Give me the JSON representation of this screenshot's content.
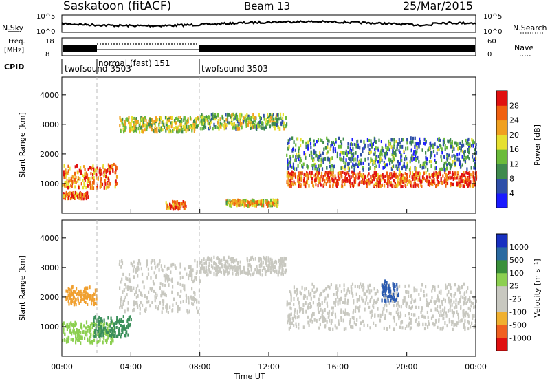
{
  "header": {
    "station": "Saskatoon (fitACF)",
    "beam": "Beam 13",
    "date": "25/Mar/2015"
  },
  "status_panels": {
    "nsky_label": "N.Sky",
    "nsky_ticks": [
      "10^5",
      "10^0"
    ],
    "nsky_right_ticks": [
      "10^5",
      "10^0"
    ],
    "nsearch_label": "N.Search",
    "freq_label_1": "Freq.",
    "freq_label_2": "[MHz]",
    "freq_ticks": [
      "18",
      "8"
    ],
    "nave_ticks": [
      "60",
      "0"
    ],
    "nave_label": "Nave",
    "cpid_label": "CPID"
  },
  "cpid_segments": [
    {
      "label": "twofsound 3503",
      "start_hour": 0.0
    },
    {
      "label": "normal (fast) 151",
      "start_hour": 2.0
    },
    {
      "label": "twofsound 3503",
      "start_hour": 8.0
    }
  ],
  "chart_data": [
    {
      "type": "heatmap",
      "title": "Power",
      "xlabel": "",
      "ylabel": "Slant Range [km]",
      "xlim_hours": [
        0,
        24
      ],
      "ylim": [
        0,
        4600
      ],
      "yticks": [
        1000,
        2000,
        3000,
        4000
      ],
      "colorbar_label": "Power [dB]",
      "colorbar_ticks": [
        "4",
        "8",
        "12",
        "16",
        "20",
        "24",
        "28"
      ],
      "colorbar_colors": [
        "#1a1aff",
        "#2e4fa8",
        "#3f8a4e",
        "#6bbb3a",
        "#e6e030",
        "#f0a020",
        "#f06010",
        "#e01010"
      ],
      "scatter_bands": [
        {
          "start_hour": 0.0,
          "end_hour": 3.2,
          "range_low": 900,
          "range_high": 1700,
          "level": 0.75
        },
        {
          "start_hour": 0.0,
          "end_hour": 1.5,
          "range_low": 550,
          "range_high": 750,
          "level": 0.8
        },
        {
          "start_hour": 3.3,
          "end_hour": 8.0,
          "range_low": 2800,
          "range_high": 3300,
          "level": 0.5
        },
        {
          "start_hour": 8.0,
          "end_hour": 13.0,
          "range_low": 2900,
          "range_high": 3400,
          "level": 0.45
        },
        {
          "start_hour": 13.0,
          "end_hour": 24.0,
          "range_low": 950,
          "range_high": 1450,
          "level": 0.85
        },
        {
          "start_hour": 13.0,
          "end_hour": 24.0,
          "range_low": 1500,
          "range_high": 2600,
          "level": 0.3
        },
        {
          "start_hour": 6.0,
          "end_hour": 7.2,
          "range_low": 200,
          "range_high": 450,
          "level": 0.8
        },
        {
          "start_hour": 9.5,
          "end_hour": 12.5,
          "range_low": 300,
          "range_high": 500,
          "level": 0.6
        }
      ]
    },
    {
      "type": "heatmap",
      "title": "Velocity",
      "xlabel": "Time UT",
      "ylabel": "Slant Range [km]",
      "xlim_hours": [
        0,
        24
      ],
      "ylim": [
        0,
        4600
      ],
      "yticks": [
        1000,
        2000,
        3000,
        4000
      ],
      "xticks": [
        "00:00",
        "04:00",
        "08:00",
        "12:00",
        "16:00",
        "20:00",
        "00:00"
      ],
      "colorbar_label": "Velocity [m s⁻¹]",
      "colorbar_ticks": [
        "1000",
        "500",
        "100",
        "25",
        "-25",
        "-100",
        "-500",
        "-1000"
      ],
      "colorbar_colors": [
        "#1830c0",
        "#2a6aa0",
        "#3a8f3a",
        "#8ccf50",
        "#c8c8c0",
        "#c8c8c0",
        "#f0b030",
        "#f06020",
        "#e01010"
      ],
      "scatter_bands": [
        {
          "start_hour": 0.0,
          "end_hour": 3.0,
          "range_low": 500,
          "range_high": 1200,
          "class": "green"
        },
        {
          "start_hour": 1.8,
          "end_hour": 4.0,
          "range_low": 700,
          "range_high": 1400,
          "class": "darkgreen"
        },
        {
          "start_hour": 3.3,
          "end_hour": 8.0,
          "range_low": 1500,
          "range_high": 3300,
          "class": "grey"
        },
        {
          "start_hour": 8.0,
          "end_hour": 13.0,
          "range_low": 2800,
          "range_high": 3400,
          "class": "grey"
        },
        {
          "start_hour": 13.0,
          "end_hour": 24.0,
          "range_low": 950,
          "range_high": 2500,
          "class": "grey"
        },
        {
          "start_hour": 0.2,
          "end_hour": 2.0,
          "range_low": 1800,
          "range_high": 2400,
          "class": "orange"
        },
        {
          "start_hour": 18.5,
          "end_hour": 19.5,
          "range_low": 1900,
          "range_high": 2600,
          "class": "blue"
        }
      ]
    }
  ]
}
